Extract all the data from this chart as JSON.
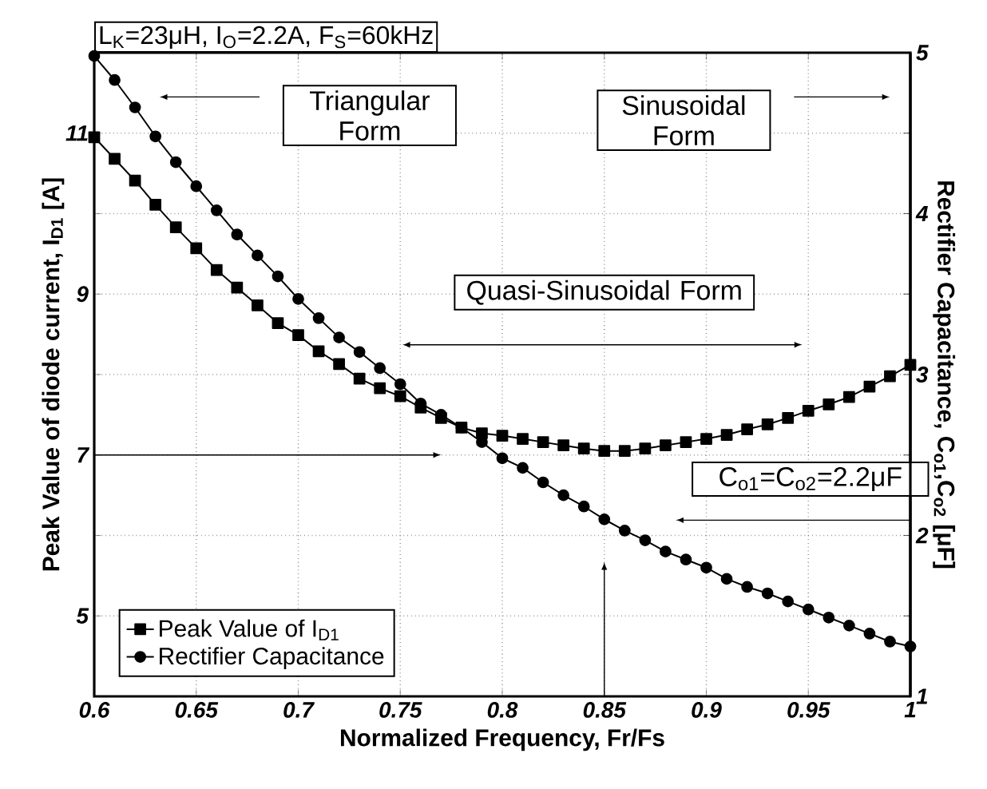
{
  "chart_data": {
    "type": "line",
    "title": "L$_{K}$=23μH, I$_{O}$=2.2A, F$_{S}$=60kHz",
    "xlabel": "Normalized Frequency, Fr/Fs",
    "ylabel": "Peak Value of diode current, I$_{D1}$ [A]",
    "y2label": "Rectifier Capacitance, C$_{o1}$,C$_{o2}$ [μF]",
    "annotations": [
      "Triangular Form",
      "Sinusoidal Form",
      "Quasi-Sinusoidal Form",
      "C$_{o1}$=C$_{o2}$=2.2μF"
    ],
    "x": [
      0.6,
      0.61,
      0.62,
      0.63,
      0.64,
      0.65,
      0.66,
      0.67,
      0.68,
      0.69,
      0.7,
      0.71,
      0.72,
      0.73,
      0.74,
      0.75,
      0.76,
      0.77,
      0.78,
      0.79,
      0.8,
      0.81,
      0.82,
      0.83,
      0.84,
      0.85,
      0.86,
      0.87,
      0.88,
      0.89,
      0.9,
      0.91,
      0.92,
      0.93,
      0.94,
      0.95,
      0.96,
      0.97,
      0.98,
      0.99,
      1.0
    ],
    "series": [
      {
        "name": "Peak Value of I$_{D1}$",
        "color": "#000000",
        "marker": "square",
        "values": [
          10.95,
          10.68,
          10.41,
          10.11,
          9.83,
          9.57,
          9.3,
          9.08,
          8.86,
          8.64,
          8.49,
          8.29,
          8.13,
          7.95,
          7.83,
          7.73,
          7.59,
          7.46,
          7.34,
          7.27,
          7.24,
          7.2,
          7.16,
          7.12,
          7.08,
          7.05,
          7.05,
          7.08,
          7.12,
          7.16,
          7.2,
          7.25,
          7.32,
          7.38,
          7.46,
          7.55,
          7.63,
          7.72,
          7.85,
          7.98,
          8.12
        ]
      },
      {
        "name": "Rectifier Capacitance",
        "color": "#000000",
        "marker": "circle",
        "axis": "y2",
        "values": [
          4.98,
          4.83,
          4.66,
          4.48,
          4.32,
          4.17,
          4.02,
          3.87,
          3.74,
          3.61,
          3.47,
          3.35,
          3.23,
          3.14,
          3.04,
          2.94,
          2.82,
          2.75,
          2.67,
          2.58,
          2.48,
          2.42,
          2.33,
          2.25,
          2.18,
          2.1,
          2.03,
          1.97,
          1.9,
          1.85,
          1.8,
          1.73,
          1.68,
          1.64,
          1.59,
          1.54,
          1.49,
          1.44,
          1.39,
          1.34,
          1.31
        ]
      }
    ],
    "xlim": [
      0.6,
      1
    ],
    "xticks": [
      0.6,
      0.65,
      0.7,
      0.75,
      0.8,
      0.85,
      0.9,
      0.95,
      1
    ],
    "ylim": [
      4,
      12
    ],
    "yticks": [
      5,
      {
        "value": 6,
        "label": null
      },
      7,
      {
        "value": 8,
        "label": null
      },
      9,
      {
        "value": 10,
        "label": null
      },
      11
    ],
    "y2lim": [
      1,
      5
    ],
    "y2ticks": [
      1,
      {
        "value": 1.5,
        "label": null
      },
      2,
      {
        "value": 2.5,
        "label": null
      },
      3,
      {
        "value": 3.5,
        "label": null
      },
      4,
      {
        "value": 4.5,
        "label": null
      },
      5
    ],
    "grid": true,
    "legend": "bottom left",
    "line_style": "solid"
  }
}
